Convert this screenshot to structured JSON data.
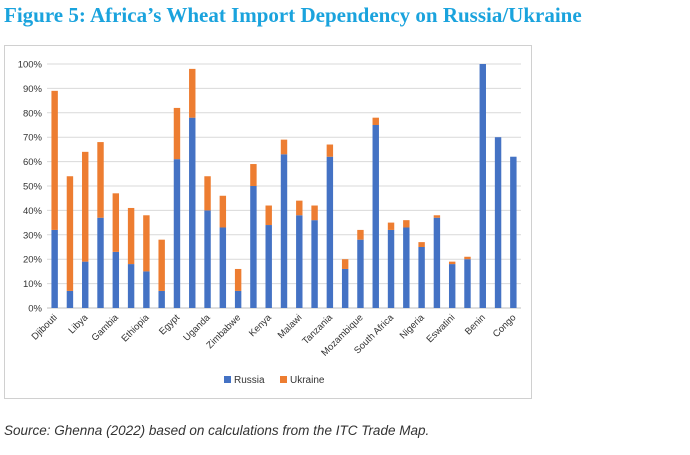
{
  "figure": {
    "title": "Figure 5: Africa’s Wheat Import Dependency on Russia/Ukraine",
    "source": "Source: Ghenna (2022) based on calculations from the ITC Trade Map."
  },
  "chart_data": {
    "type": "bar",
    "stacked": true,
    "title": "",
    "xlabel": "",
    "ylabel": "",
    "ylim": [
      0,
      100
    ],
    "yticks": [
      "0%",
      "10%",
      "20%",
      "30%",
      "40%",
      "50%",
      "60%",
      "70%",
      "80%",
      "90%",
      "100%"
    ],
    "grid": true,
    "legend_position": "bottom",
    "categories": [
      "Djibouti",
      "",
      "Libya",
      "",
      "Gambia",
      "",
      "Ethiopia",
      "",
      "Egypt",
      "",
      "Uganda",
      "",
      "Zimbabwe",
      "",
      "Kenya",
      "",
      "Malawi",
      "",
      "Tanzania",
      "",
      "Mozambique",
      "",
      "South Africa",
      "",
      "Nigeria",
      "",
      "Eswatini",
      "",
      "Benin",
      "",
      "Congo"
    ],
    "series": [
      {
        "name": "Russia",
        "color": "#4472c4",
        "values": [
          32,
          7,
          19,
          37,
          23,
          18,
          15,
          7,
          61,
          78,
          40,
          33,
          7,
          50,
          34,
          63,
          38,
          36,
          62,
          16,
          28,
          75,
          32,
          33,
          25,
          37,
          18,
          20,
          100,
          70,
          62
        ]
      },
      {
        "name": "Ukraine",
        "color": "#ed7d31",
        "values": [
          57,
          47,
          45,
          31,
          24,
          23,
          23,
          21,
          21,
          20,
          14,
          13,
          9,
          9,
          8,
          6,
          6,
          6,
          5,
          4,
          4,
          3,
          3,
          3,
          2,
          1,
          1,
          1,
          0,
          0,
          0
        ]
      }
    ]
  }
}
